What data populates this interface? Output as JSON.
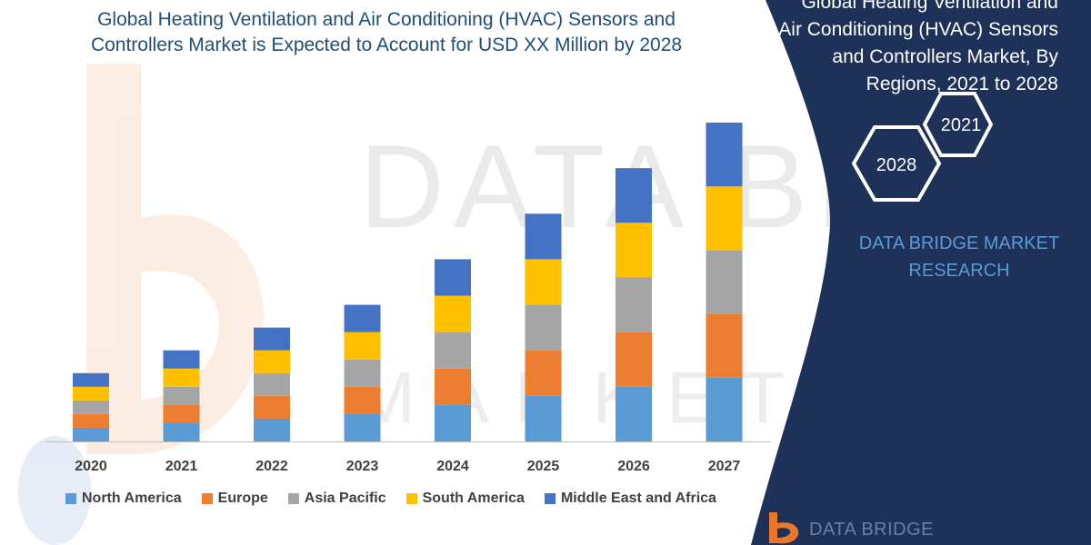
{
  "header": {
    "title_line1": "Global Heating Ventilation and Air Conditioning (HVAC) Sensors and",
    "title_line2": "Controllers Market is Expected to Account for USD XX Million by 2028"
  },
  "side_panel": {
    "title_line1": "Global Heating Ventilation and",
    "title_line2": "Air Conditioning (HVAC) Sensors",
    "title_line3": "and Controllers Market, By",
    "title_line4": "Regions, 2021 to 2028",
    "hex_top": "2021",
    "hex_bottom": "2028",
    "brand_line1": "DATA BRIDGE MARKET",
    "brand_line2": "RESEARCH",
    "panel_color": "#1e3158",
    "hex_color": "#ffffff",
    "brand_color": "#5b9bd5"
  },
  "logo": {
    "text": "DATA BRIDGE",
    "icon": "data-bridge-logo-icon",
    "accent": "#e8762d"
  },
  "chart_data": {
    "type": "bar",
    "stacked": true,
    "categories": [
      "2020",
      "2021",
      "2022",
      "2023",
      "2024",
      "2025",
      "2026",
      "2027"
    ],
    "series": [
      {
        "name": "North America",
        "color": "#5b9bd5",
        "values": [
          15,
          20,
          25,
          30,
          40,
          50,
          60,
          70
        ]
      },
      {
        "name": "Europe",
        "color": "#ed7d31",
        "values": [
          15,
          20,
          25,
          30,
          40,
          50,
          60,
          70
        ]
      },
      {
        "name": "Asia Pacific",
        "color": "#a5a5a5",
        "values": [
          15,
          20,
          25,
          30,
          40,
          50,
          60,
          70
        ]
      },
      {
        "name": "South America",
        "color": "#ffc000",
        "values": [
          15,
          20,
          25,
          30,
          40,
          50,
          60,
          70
        ]
      },
      {
        "name": "Middle East and Africa",
        "color": "#4472c4",
        "values": [
          15,
          20,
          25,
          30,
          40,
          50,
          60,
          70
        ]
      }
    ],
    "ylim": [
      0,
      350
    ],
    "grid": false,
    "legend_position": "bottom",
    "xlabel": "",
    "ylabel": ""
  }
}
